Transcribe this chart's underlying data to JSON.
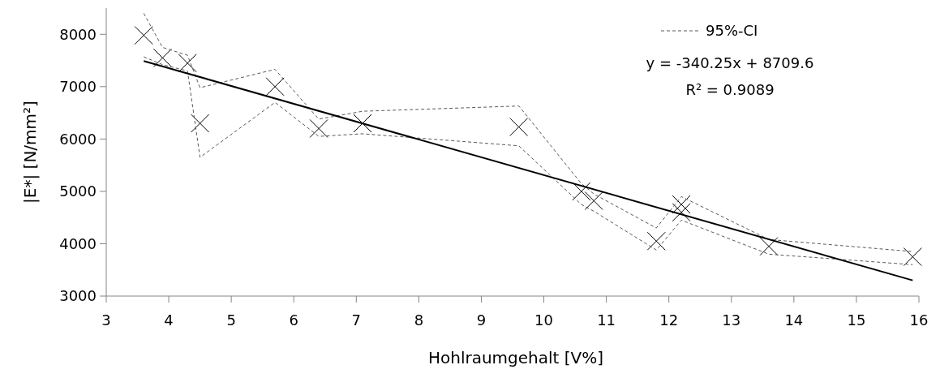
{
  "chart_data": {
    "type": "scatter",
    "xlabel": "Hohlraumgehalt [V%]",
    "ylabel": "|E*| [N/mm²]",
    "xlim": [
      3,
      16
    ],
    "ylim": [
      3000,
      8500
    ],
    "xticks": [
      3,
      4,
      5,
      6,
      7,
      8,
      9,
      10,
      11,
      12,
      13,
      14,
      15,
      16
    ],
    "yticks": [
      3000,
      4000,
      5000,
      6000,
      7000,
      8000
    ],
    "grid": false,
    "legend": "top right",
    "annotations": [
      "y = -340.25x + 8709.6",
      "R² = 0.9089"
    ],
    "series": [
      {
        "marker": "cross",
        "color": "#000000",
        "x": [
          3.6,
          3.9,
          4.3,
          4.5,
          5.7,
          6.4,
          7.1,
          9.6,
          10.6,
          10.8,
          11.8,
          12.2,
          12.2,
          13.6,
          15.9
        ],
        "values": [
          7980,
          7550,
          7450,
          6300,
          7000,
          6200,
          6300,
          6230,
          5000,
          4820,
          4050,
          4750,
          4600,
          3950,
          3750
        ]
      },
      {
        "type": "line",
        "name": "95%-CI",
        "line_style": "dashed",
        "marker": "none",
        "color": "#595959",
        "x": [
          3.6,
          3.9,
          4.3,
          4.5,
          5.7,
          6.4,
          7.1,
          9.6,
          10.6,
          10.8,
          11.8,
          12.2,
          13.6,
          15.9
        ],
        "values": [
          8400,
          7750,
          7600,
          6980,
          7330,
          6380,
          6530,
          6630,
          5150,
          4950,
          4300,
          4900,
          4080,
          3850
        ]
      },
      {
        "type": "line",
        "line_style": "dashed",
        "marker": "none",
        "color": "#595959",
        "x": [
          3.6,
          3.9,
          4.3,
          4.5,
          5.7,
          6.4,
          7.1,
          9.6,
          10.6,
          10.8,
          11.8,
          12.2,
          13.6,
          15.9
        ],
        "values": [
          7570,
          7420,
          7300,
          5650,
          6700,
          6050,
          6100,
          5870,
          4750,
          4620,
          3880,
          4450,
          3800,
          3600
        ]
      },
      {
        "type": "line",
        "line_style": "solid",
        "marker": "none",
        "color": "#000000",
        "x": [
          3.6,
          15.9
        ],
        "values": [
          7490,
          3300
        ]
      }
    ]
  }
}
